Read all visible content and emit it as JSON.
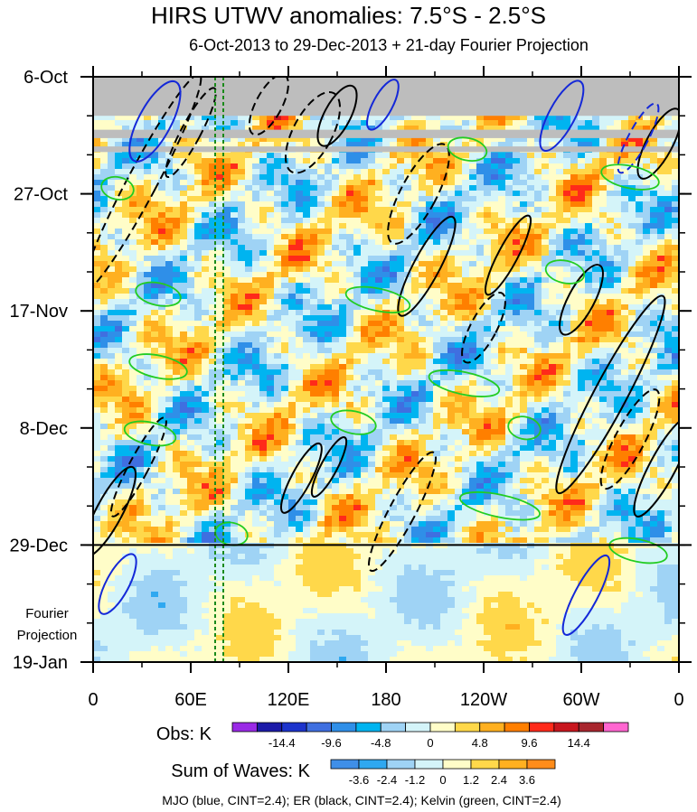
{
  "chart_data": {
    "type": "heatmap",
    "title": "HIRS UTWV anomalies: 7.5°S - 2.5°S",
    "subtitle": "6-Oct-2013 to 29-Dec-2013 + 21-day Fourier Projection",
    "y_axis": {
      "tick_labels": [
        "6-Oct",
        "27-Oct",
        "17-Nov",
        "8-Dec",
        "29-Dec",
        "19-Jan"
      ],
      "range_days": [
        0,
        105
      ],
      "tick_days": [
        0,
        21,
        42,
        63,
        84,
        105
      ],
      "projection_start_day": 84,
      "projection_label": [
        "Fourier",
        "Projection"
      ]
    },
    "x_axis": {
      "tick_labels": [
        "0",
        "60E",
        "120E",
        "180",
        "120W",
        "60W",
        "0"
      ],
      "range_deg": [
        0,
        360
      ],
      "tick_deg": [
        0,
        60,
        120,
        180,
        240,
        300,
        360
      ]
    },
    "reference_lines_deg": [
      75,
      80
    ],
    "obs_colorbar": {
      "label": "Obs: K",
      "colors": [
        "#9a2ae6",
        "#1c1aa8",
        "#1d34cc",
        "#3f6fe0",
        "#2f8fe8",
        "#00b4f0",
        "#9fd3f5",
        "#d4f4f9",
        "#fffdc8",
        "#ffd84a",
        "#ffb020",
        "#ff7f00",
        "#ff2a1a",
        "#c8161e",
        "#a8262e",
        "#ff66d0"
      ],
      "tick_labels": [
        "-14.4",
        "-9.6",
        "-4.8",
        "0",
        "4.8",
        "9.6",
        "14.4"
      ]
    },
    "waves_colorbar": {
      "label": "Sum of Waves: K",
      "colors": [
        "#3f8fe8",
        "#2fa8f0",
        "#9fd3f5",
        "#d4f4f9",
        "#fffdc8",
        "#ffd84a",
        "#ffb020",
        "#ff8c1a"
      ],
      "tick_labels": [
        "-3.6",
        "-2.4",
        "-1.2",
        "0",
        "1.2",
        "2.4",
        "3.6"
      ]
    },
    "legend_note": "MJO (blue, CINT=2.4); ER (black, CINT=2.4); Kelvin (green, CINT=2.4)",
    "missing_data_bands_days": [
      [
        0,
        7
      ],
      [
        9.5,
        11
      ],
      [
        12.5,
        13.5
      ]
    ],
    "mjo_contours": [
      {
        "lon": 15,
        "day": 91,
        "rlon": 7,
        "rday": 6,
        "sign": 1
      },
      {
        "lon": 178,
        "day": 5,
        "rlon": 6,
        "rday": 5,
        "sign": 1
      },
      {
        "lon": 288,
        "day": 7,
        "rlon": 8,
        "rday": 7,
        "sign": 1
      },
      {
        "lon": 335,
        "day": 11,
        "rlon": 6,
        "rday": 7,
        "sign": -1
      },
      {
        "lon": 303,
        "day": 93,
        "rlon": 7,
        "rday": 8,
        "sign": 1
      },
      {
        "lon": 38,
        "day": 8,
        "rlon": 10,
        "rday": 8,
        "sign": 1
      }
    ],
    "er_contours": [
      {
        "lon": 30,
        "day": 19,
        "rlon": 9,
        "rday": 22,
        "sign": -1
      },
      {
        "lon": 10,
        "day": 78,
        "rlon": 8,
        "rday": 9,
        "sign": 1
      },
      {
        "lon": 28,
        "day": 70,
        "rlon": 6,
        "rday": 10,
        "sign": -1
      },
      {
        "lon": 60,
        "day": 10,
        "rlon": 6,
        "rday": 9,
        "sign": -1
      },
      {
        "lon": 108,
        "day": 5,
        "rlon": 8,
        "rday": 6,
        "sign": -1
      },
      {
        "lon": 135,
        "day": 10,
        "rlon": 12,
        "rday": 8,
        "sign": -1
      },
      {
        "lon": 150,
        "day": 7,
        "rlon": 8,
        "rday": 6,
        "sign": 1
      },
      {
        "lon": 200,
        "day": 21,
        "rlon": 11,
        "rday": 10,
        "sign": -1
      },
      {
        "lon": 205,
        "day": 34,
        "rlon": 8,
        "rday": 10,
        "sign": 1
      },
      {
        "lon": 190,
        "day": 78,
        "rlon": 8,
        "rday": 12,
        "sign": -1
      },
      {
        "lon": 240,
        "day": 45,
        "rlon": 8,
        "rday": 7,
        "sign": -1
      },
      {
        "lon": 300,
        "day": 40,
        "rlon": 8,
        "rday": 7,
        "sign": 1
      },
      {
        "lon": 318,
        "day": 57,
        "rlon": 10,
        "rday": 20,
        "sign": 1
      },
      {
        "lon": 330,
        "day": 65,
        "rlon": 9,
        "rday": 10,
        "sign": -1
      },
      {
        "lon": 350,
        "day": 70,
        "rlon": 8,
        "rday": 10,
        "sign": 1
      },
      {
        "lon": 128,
        "day": 72,
        "rlon": 6,
        "rday": 7,
        "sign": 1
      },
      {
        "lon": 145,
        "day": 70,
        "rlon": 5,
        "rday": 6,
        "sign": 1
      },
      {
        "lon": 255,
        "day": 32,
        "rlon": 6,
        "rday": 8,
        "sign": 1
      },
      {
        "lon": 348,
        "day": 12,
        "rlon": 8,
        "rday": 7,
        "sign": 1
      }
    ],
    "kelvin_contours": [
      {
        "lon": 15,
        "day": 20,
        "rlon": 10,
        "rday": 2,
        "sign": 1
      },
      {
        "lon": 40,
        "day": 39,
        "rlon": 14,
        "rday": 2,
        "sign": 1
      },
      {
        "lon": 40,
        "day": 52,
        "rlon": 18,
        "rday": 2,
        "sign": 1
      },
      {
        "lon": 35,
        "day": 64,
        "rlon": 16,
        "rday": 2,
        "sign": 1
      },
      {
        "lon": 175,
        "day": 40,
        "rlon": 20,
        "rday": 2,
        "sign": 1
      },
      {
        "lon": 228,
        "day": 55,
        "rlon": 22,
        "rday": 2,
        "sign": 1
      },
      {
        "lon": 250,
        "day": 77,
        "rlon": 25,
        "rday": 2,
        "sign": 1
      },
      {
        "lon": 330,
        "day": 18,
        "rlon": 18,
        "rday": 2,
        "sign": 1
      },
      {
        "lon": 290,
        "day": 35,
        "rlon": 12,
        "rday": 2,
        "sign": 1
      },
      {
        "lon": 160,
        "day": 62,
        "rlon": 14,
        "rday": 2,
        "sign": 1
      },
      {
        "lon": 230,
        "day": 13,
        "rlon": 12,
        "rday": 2,
        "sign": 1
      },
      {
        "lon": 335,
        "day": 85,
        "rlon": 18,
        "rday": 2,
        "sign": 1
      },
      {
        "lon": 85,
        "day": 82,
        "rlon": 10,
        "rday": 2,
        "sign": 1
      },
      {
        "lon": 265,
        "day": 63,
        "rlon": 10,
        "rday": 2,
        "sign": 1
      }
    ]
  }
}
